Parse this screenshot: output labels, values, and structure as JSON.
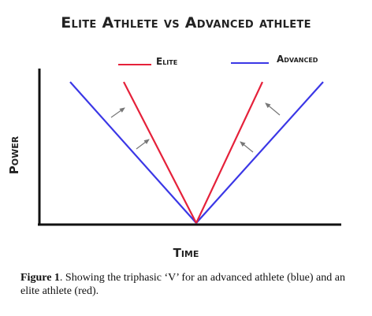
{
  "title": "Elite Athlete vs Advanced athlete",
  "legend": {
    "elite": {
      "label": "Elite",
      "color": "#e5213a"
    },
    "advanced": {
      "label": "Advanced",
      "color": "#3b37e6"
    }
  },
  "axes": {
    "xlabel": "Time",
    "ylabel": "Power"
  },
  "caption": {
    "lead": "Figure 1",
    "text": ". Showing the triphasic ‘V’ for an advanced athlete (blue) and an elite athlete (red)."
  },
  "colors": {
    "axis": "#111111",
    "arrow": "#777777"
  }
}
